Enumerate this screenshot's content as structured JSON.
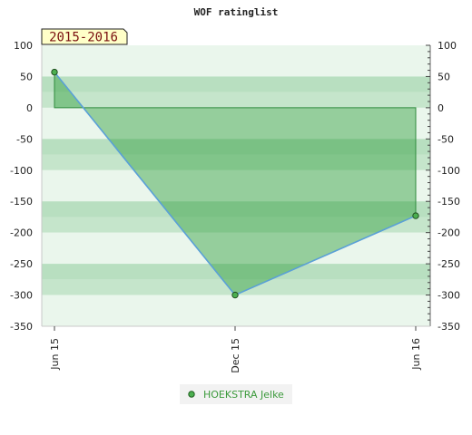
{
  "chart_data": {
    "type": "line",
    "title": "WOF ratinglist",
    "season_label": "2015-2016",
    "x": [
      "Jun 15",
      "Dec 15",
      "Jun 16"
    ],
    "series": [
      {
        "name": "HOEKSTRA Jelke",
        "values": [
          57,
          -300,
          -173
        ]
      }
    ],
    "ylim": [
      -350,
      100
    ],
    "yticks": [
      "100",
      "50",
      "0",
      "-50",
      "-100",
      "-150",
      "-200",
      "-250",
      "-300",
      "-350"
    ],
    "y2ticks": [
      "100",
      "50",
      "0",
      "-50",
      "-100",
      "-150",
      "-200",
      "-250",
      "-300",
      "-350"
    ],
    "grid": "horizontal bands",
    "legend": "bottom-center",
    "colors": {
      "line": "#5aa0d8",
      "fill": "#2e9e3c",
      "marker": "#4caf50",
      "band_dark": "#b8dfc0",
      "band_light": "#eaf6ec",
      "season_bg": "#ffffc8"
    }
  }
}
